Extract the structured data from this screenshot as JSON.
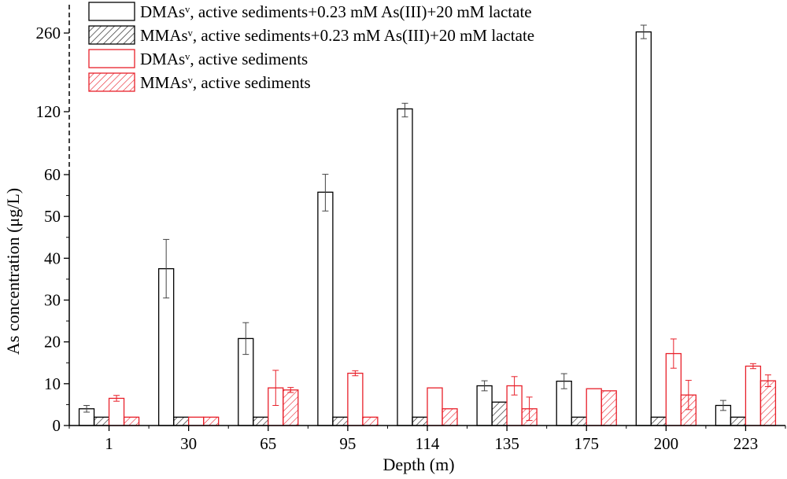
{
  "chart_data": {
    "type": "bar",
    "xlabel": "Depth (m)",
    "ylabel": "As concentration (μg/L)",
    "categories": [
      "1",
      "30",
      "65",
      "95",
      "114",
      "135",
      "175",
      "200",
      "223"
    ],
    "yticks": [
      "0",
      "10",
      "20",
      "30",
      "40",
      "50",
      "60",
      "120",
      "260"
    ],
    "axis_break": {
      "lower_range": [
        0,
        60
      ],
      "upper_ticks": [
        120,
        260
      ]
    },
    "ylim": [
      0,
      280
    ],
    "grid": false,
    "legend_position": "top-left",
    "series": [
      {
        "name": "DMAsᵛ, active sediments+0.23 mM As(III)+20 mM lactate",
        "color": "#000000",
        "hatched": false,
        "values": [
          4.0,
          37.5,
          20.8,
          55.8,
          125,
          9.5,
          10.6,
          262,
          4.8
        ],
        "errors": [
          0.8,
          7.0,
          3.8,
          4.5,
          10,
          1.2,
          1.8,
          12,
          1.2
        ]
      },
      {
        "name": "MMAsᵛ, active sediments+0.23 mM As(III)+20 mM lactate",
        "color": "#000000",
        "hatched": true,
        "values": [
          2.0,
          2.0,
          2.0,
          2.0,
          2.0,
          5.6,
          2.0,
          2.0,
          2.0
        ],
        "errors": [
          null,
          null,
          null,
          null,
          null,
          null,
          null,
          null,
          null
        ]
      },
      {
        "name": "DMAsᵛ, active sediments",
        "color": "#e8202a",
        "hatched": false,
        "values": [
          6.5,
          2.0,
          9.0,
          12.5,
          9.0,
          9.5,
          8.8,
          17.2,
          14.2
        ],
        "errors": [
          0.7,
          null,
          4.2,
          0.6,
          null,
          2.2,
          null,
          3.5,
          0.6
        ]
      },
      {
        "name": "MMAsᵛ, active sediments",
        "color": "#e8202a",
        "hatched": true,
        "values": [
          2.0,
          2.0,
          8.5,
          2.0,
          4.0,
          4.0,
          8.3,
          7.3,
          10.7
        ],
        "errors": [
          null,
          null,
          0.6,
          null,
          null,
          2.8,
          null,
          3.5,
          1.4
        ]
      }
    ]
  }
}
